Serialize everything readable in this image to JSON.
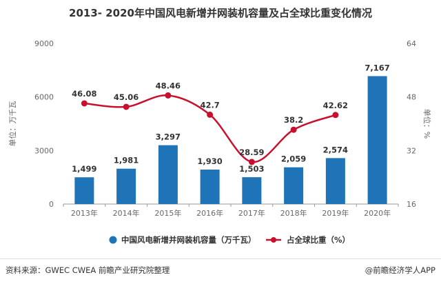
{
  "title": "2013- 2020年中国风电新增并网装机容量及占全球比重变化情况",
  "footer": {
    "source": "资料来源：GWEC CWEA 前瞻产业研究院整理",
    "brand": "@前瞻经济学人APP"
  },
  "colors": {
    "bar": "#1f73b7",
    "line": "#c8102e",
    "axis_text": "#666666",
    "label_text": "#333333"
  },
  "chart_data": {
    "type": "bar",
    "categories": [
      "2013年",
      "2014年",
      "2015年",
      "2016年",
      "2017年",
      "2018年",
      "2019年",
      "2020年"
    ],
    "series": [
      {
        "name": "中国风电新增并网装机容量（万千瓦）",
        "type": "bar",
        "axis": "left",
        "values": [
          1499,
          1981,
          3297,
          1930,
          1503,
          2059,
          2574,
          7167
        ],
        "labels": [
          "1,499",
          "1,981",
          "3,297",
          "1,930",
          "1,503",
          "2,059",
          "2,574",
          "7,167"
        ]
      },
      {
        "name": "占全球比重（%）",
        "type": "line",
        "axis": "right",
        "values": [
          46.08,
          45.06,
          48.46,
          42.7,
          28.59,
          38.2,
          42.62,
          null
        ],
        "labels": [
          "46.08",
          "45.06",
          "48.46",
          "42.7",
          "28.59",
          "38.2",
          "42.62",
          ""
        ]
      }
    ],
    "ylabel": "单位：万千瓦",
    "y2label": "单位：%",
    "ylim": [
      0,
      9000
    ],
    "yticks": [
      "0",
      "3000",
      "6000",
      "9000"
    ],
    "y2lim": [
      16,
      64
    ],
    "y2ticks": [
      "16",
      "32",
      "48",
      "64"
    ],
    "grid": false,
    "legend": "bottom"
  }
}
